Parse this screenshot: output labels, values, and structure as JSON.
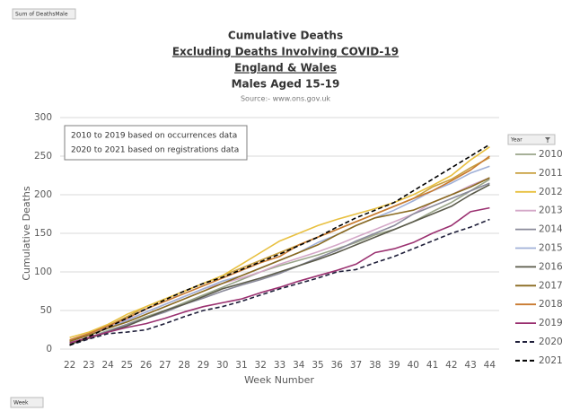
{
  "chart_data": {
    "type": "line",
    "title": "Cumulative Deaths",
    "subtitle": "Excluding Deaths Involving COVID-19",
    "region": "England & Wales",
    "group": "Males Aged 15-19",
    "source": "Source:- www.ons.gov.uk",
    "value_field": "Sum of DeathsMale",
    "axis_field": "Week",
    "legend_field": "Year",
    "x_label": "Week Number",
    "y_label": "Cumulative Deaths",
    "annotations": [
      "2010 to 2019 based on occurrences data",
      "2020 to 2021 based on registrations data"
    ],
    "categories": [
      22,
      23,
      24,
      25,
      26,
      27,
      28,
      29,
      30,
      31,
      32,
      33,
      34,
      35,
      36,
      37,
      38,
      39,
      40,
      41,
      42,
      43,
      44
    ],
    "ylim": [
      0,
      300
    ],
    "yticks": [
      0,
      50,
      100,
      150,
      200,
      250,
      300
    ],
    "grid": true,
    "legend": "right",
    "series": [
      {
        "name": "2010",
        "color": "#9aa58a",
        "values": [
          8,
          15,
          24,
          32,
          42,
          50,
          60,
          70,
          80,
          90,
          100,
          108,
          115,
          122,
          130,
          138,
          148,
          155,
          165,
          178,
          190,
          205,
          220
        ]
      },
      {
        "name": "2011",
        "color": "#c8a040",
        "values": [
          10,
          20,
          30,
          42,
          55,
          65,
          75,
          85,
          95,
          105,
          115,
          125,
          135,
          145,
          155,
          165,
          175,
          185,
          195,
          210,
          220,
          235,
          248
        ]
      },
      {
        "name": "2012",
        "color": "#e8c040",
        "values": [
          15,
          22,
          32,
          45,
          55,
          65,
          75,
          85,
          95,
          110,
          125,
          140,
          150,
          160,
          168,
          175,
          182,
          190,
          200,
          212,
          225,
          245,
          262
        ]
      },
      {
        "name": "2013",
        "color": "#d4a8c8",
        "values": [
          12,
          20,
          28,
          38,
          48,
          58,
          68,
          78,
          85,
          92,
          100,
          110,
          118,
          126,
          135,
          145,
          155,
          165,
          175,
          190,
          200,
          212,
          222
        ]
      },
      {
        "name": "2014",
        "color": "#8a8a9a",
        "values": [
          8,
          15,
          23,
          32,
          40,
          48,
          58,
          66,
          75,
          83,
          90,
          98,
          108,
          118,
          128,
          140,
          150,
          160,
          175,
          185,
          195,
          205,
          215
        ]
      },
      {
        "name": "2015",
        "color": "#a0b0d8",
        "values": [
          10,
          18,
          27,
          37,
          48,
          58,
          68,
          78,
          88,
          95,
          105,
          115,
          125,
          138,
          148,
          160,
          170,
          180,
          192,
          205,
          215,
          228,
          237
        ]
      },
      {
        "name": "2016",
        "color": "#5a5a4a",
        "values": [
          6,
          14,
          22,
          30,
          40,
          50,
          58,
          68,
          78,
          85,
          92,
          100,
          108,
          116,
          125,
          135,
          145,
          155,
          165,
          175,
          185,
          200,
          213
        ]
      },
      {
        "name": "2017",
        "color": "#8a6a20",
        "values": [
          10,
          18,
          27,
          35,
          45,
          55,
          65,
          75,
          85,
          95,
          105,
          115,
          125,
          135,
          148,
          160,
          170,
          175,
          180,
          190,
          200,
          210,
          222
        ]
      },
      {
        "name": "2018",
        "color": "#c87a30",
        "values": [
          12,
          20,
          30,
          40,
          52,
          62,
          72,
          82,
          92,
          102,
          112,
          120,
          135,
          145,
          155,
          165,
          175,
          185,
          195,
          205,
          218,
          232,
          250
        ]
      },
      {
        "name": "2019",
        "color": "#9a3070",
        "values": [
          8,
          15,
          22,
          28,
          33,
          40,
          48,
          55,
          60,
          65,
          73,
          80,
          88,
          95,
          102,
          110,
          125,
          130,
          138,
          150,
          160,
          178,
          183
        ]
      },
      {
        "name": "2020",
        "color": "#1f1f3a",
        "dash": true,
        "values": [
          5,
          13,
          20,
          22,
          25,
          33,
          42,
          50,
          55,
          62,
          70,
          78,
          85,
          92,
          100,
          103,
          112,
          120,
          130,
          140,
          150,
          158,
          168
        ]
      },
      {
        "name": "2021",
        "color": "#000000",
        "dash": true,
        "values": [
          5,
          16,
          28,
          40,
          52,
          64,
          75,
          85,
          93,
          103,
          113,
          123,
          134,
          145,
          158,
          170,
          180,
          190,
          205,
          220,
          235,
          250,
          265
        ]
      }
    ]
  }
}
